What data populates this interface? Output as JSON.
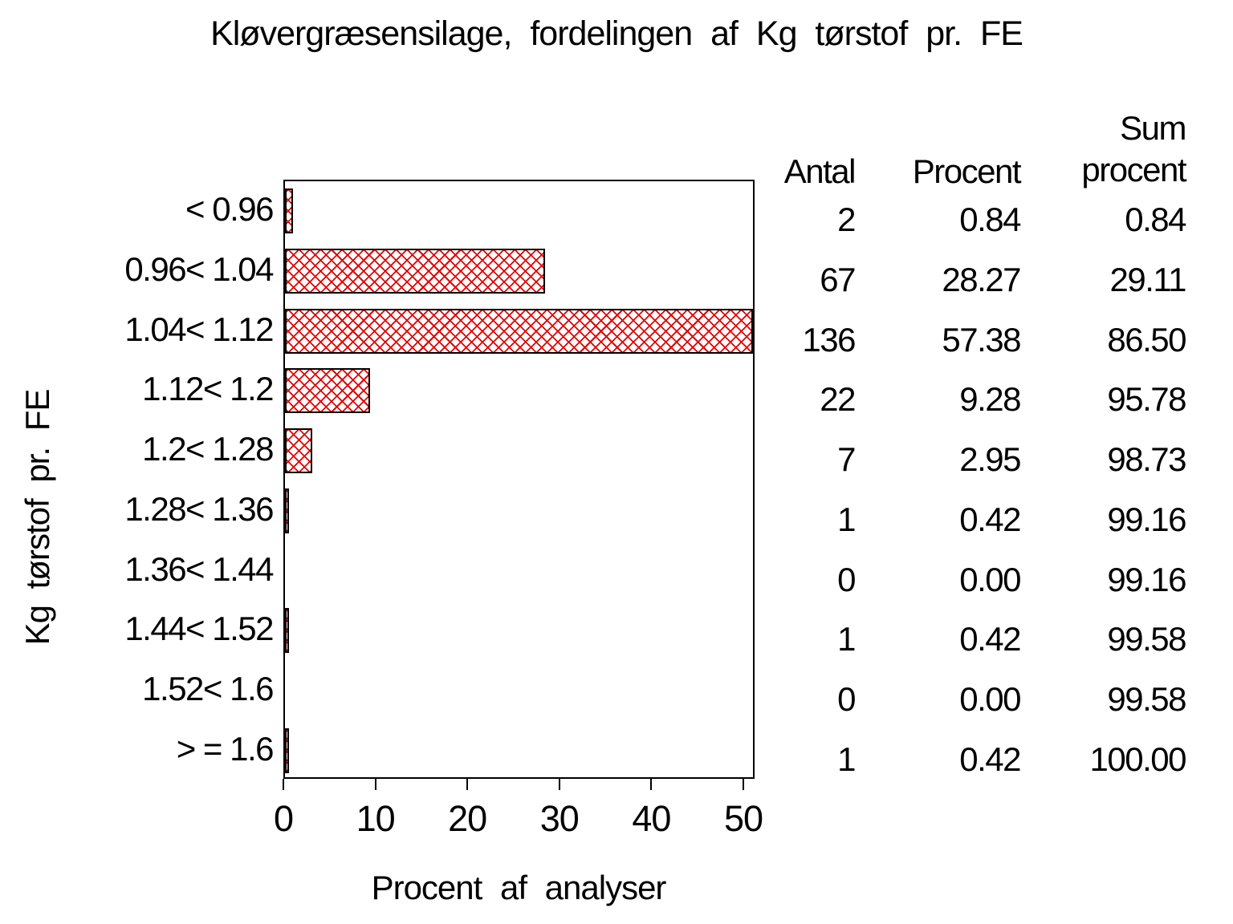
{
  "title": "Kløvergræsensilage, fordelingen af Kg tørstof pr. FE",
  "chart_data": {
    "type": "bar",
    "orientation": "horizontal",
    "title": "Kløvergræsensilage, fordelingen af Kg tørstof pr. FE",
    "xlabel": "Procent af analyser",
    "ylabel": "Kg tørstof pr. FE",
    "xlim": [
      0,
      50
    ],
    "xticks": [
      "0",
      "10",
      "20",
      "30",
      "40",
      "50"
    ],
    "grid": "off",
    "legend": "none",
    "categories": [
      "< 0.96",
      "0.96< 1.04",
      "1.04< 1.12",
      "1.12< 1.2",
      "1.2< 1.28",
      "1.28< 1.36",
      "1.36< 1.44",
      "1.44< 1.52",
      "1.52< 1.6",
      "> = 1.6"
    ],
    "values_percent": [
      0.84,
      28.27,
      57.38,
      9.28,
      2.95,
      0.42,
      0.0,
      0.42,
      0.0,
      0.42
    ],
    "bar_hatch_color": "#e10000",
    "bar_border_color": "#000000",
    "clip_note": "bar for 57.38 is clipped at axis max 50"
  },
  "table": {
    "col1_header": "Antal",
    "col2_header": "Procent",
    "col3_header_line1": "Sum",
    "col3_header_line2": "procent",
    "rows": [
      {
        "antal": "2",
        "procent": "0.84",
        "sum": "0.84"
      },
      {
        "antal": "67",
        "procent": "28.27",
        "sum": "29.11"
      },
      {
        "antal": "136",
        "procent": "57.38",
        "sum": "86.50"
      },
      {
        "antal": "22",
        "procent": "9.28",
        "sum": "95.78"
      },
      {
        "antal": "7",
        "procent": "2.95",
        "sum": "98.73"
      },
      {
        "antal": "1",
        "procent": "0.42",
        "sum": "99.16"
      },
      {
        "antal": "0",
        "procent": "0.00",
        "sum": "99.16"
      },
      {
        "antal": "1",
        "procent": "0.42",
        "sum": "99.58"
      },
      {
        "antal": "0",
        "procent": "0.00",
        "sum": "99.58"
      },
      {
        "antal": "1",
        "procent": "0.42",
        "sum": "100.00"
      }
    ]
  }
}
